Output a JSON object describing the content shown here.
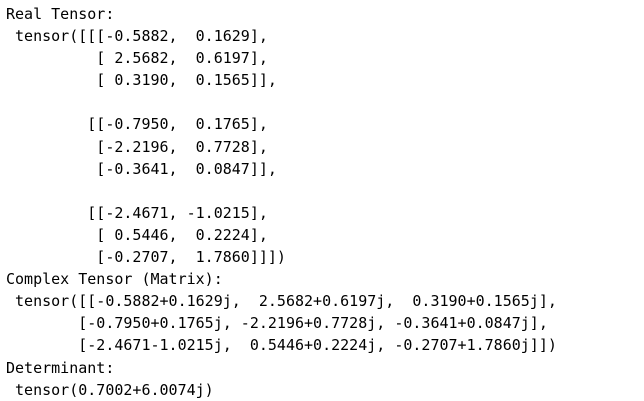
{
  "output": {
    "lines": [
      "Real Tensor:",
      " tensor([[[-0.5882,  0.1629],",
      "          [ 2.5682,  0.6197],",
      "          [ 0.3190,  0.1565]],",
      "",
      "         [[-0.7950,  0.1765],",
      "          [-2.2196,  0.7728],",
      "          [-0.3641,  0.0847]],",
      "",
      "         [[-2.4671, -1.0215],",
      "          [ 0.5446,  0.2224],",
      "          [-0.2707,  1.7860]]])",
      "Complex Tensor (Matrix):",
      " tensor([[-0.5882+0.1629j,  2.5682+0.6197j,  0.3190+0.1565j],",
      "        [-0.7950+0.1765j, -2.2196+0.7728j, -0.3641+0.0847j],",
      "        [-2.4671-1.0215j,  0.5446+0.2224j, -0.2707+1.7860j]])",
      "Determinant:",
      " tensor(0.7002+6.0074j)"
    ]
  }
}
